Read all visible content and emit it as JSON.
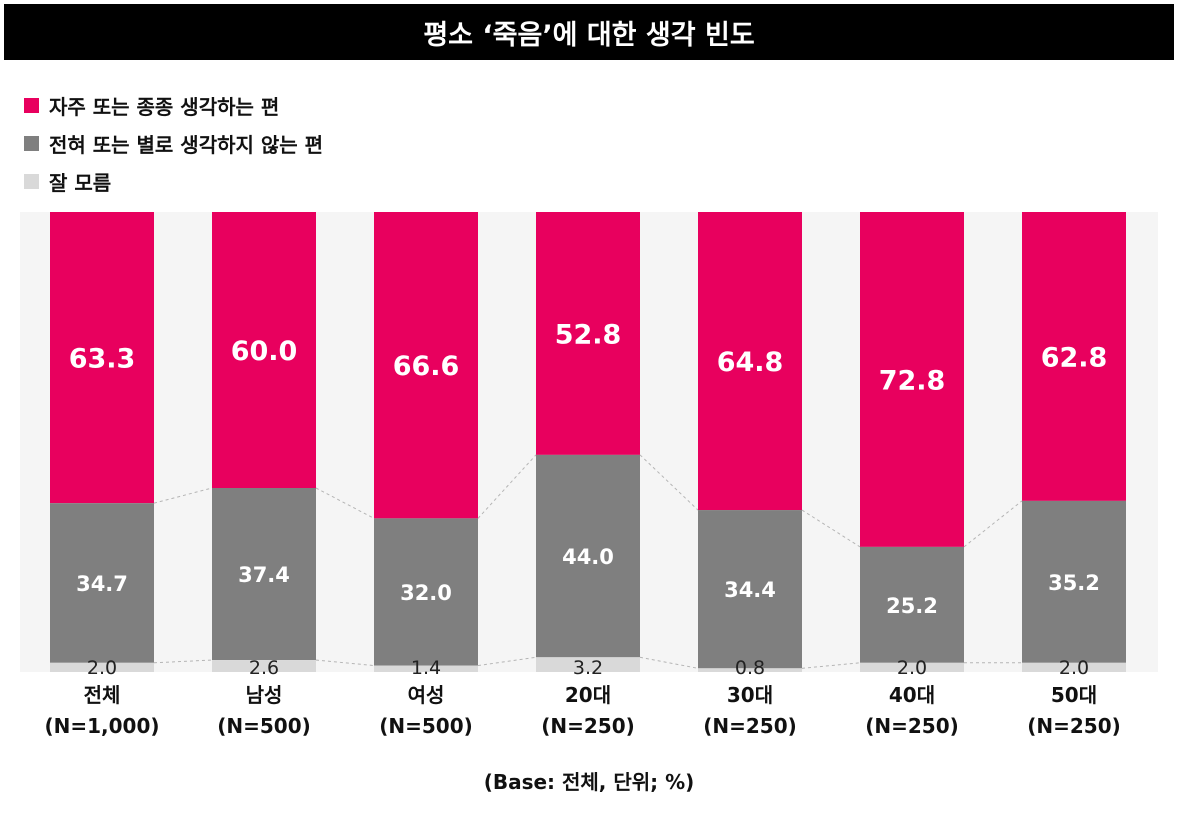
{
  "title": "평소 ‘죽음’에 대한 생각 빈도",
  "footnote": "(Base: 전체, 단위; %)",
  "colors": {
    "often": "#e8005e",
    "rarely": "#7f7f7f",
    "unknown": "#d9d9d9",
    "plot_bg": "#f5f5f5"
  },
  "chart_data": {
    "type": "bar",
    "stacked": true,
    "orientation": "vertical",
    "categories": [
      "전체\n(N=1,000)",
      "남성\n(N=500)",
      "여성\n(N=500)",
      "20대\n(N=250)",
      "30대\n(N=250)",
      "40대\n(N=250)",
      "50대\n(N=250)"
    ],
    "series": [
      {
        "name": "자주 또는 종종 생각하는 편",
        "color": "#e8005e",
        "values": [
          63.3,
          60.0,
          66.6,
          52.8,
          64.8,
          72.8,
          62.8
        ]
      },
      {
        "name": "전혀 또는 별로 생각하지 않는 편",
        "color": "#7f7f7f",
        "values": [
          34.7,
          37.4,
          32.0,
          44.0,
          34.4,
          25.2,
          35.2
        ]
      },
      {
        "name": "잘 모름",
        "color": "#d9d9d9",
        "values": [
          2.0,
          2.6,
          1.4,
          3.2,
          0.8,
          2.0,
          2.0
        ]
      }
    ],
    "ylim": [
      0,
      100
    ],
    "legend_position": "top-left",
    "grid": false
  }
}
